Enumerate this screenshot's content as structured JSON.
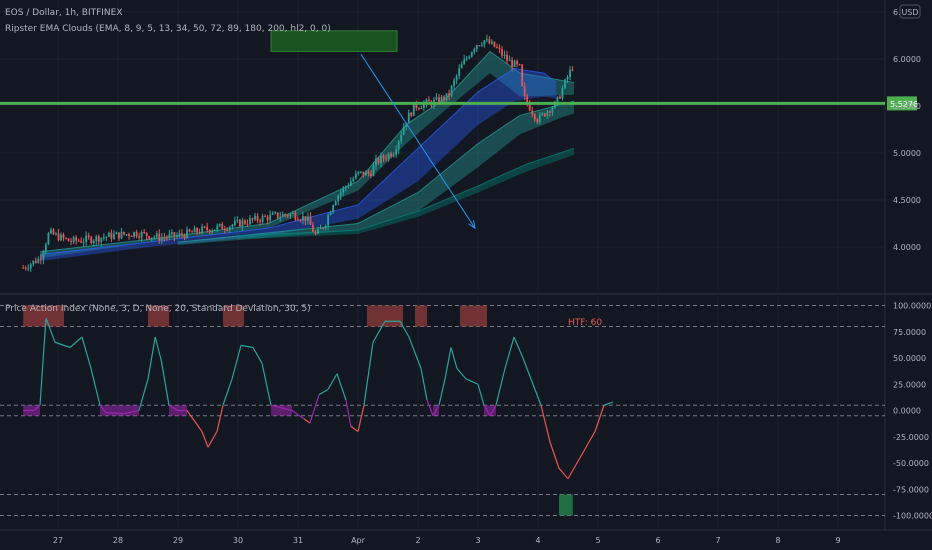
{
  "header": {
    "symbol_title": "EOS / Dollar, 1h, BITFINEX",
    "indicator_title": "Ripster EMA Clouds (EMA, 8, 9, 5, 13, 34, 50, 72, 89, 180, 200, hl2, 0, 0)",
    "oscillator_title": "Price Action Index (None, 3, D, None, 20, Standard Deviation, 30, 5)",
    "currency_badge": "USD"
  },
  "annotations": {
    "htf_label": "HTF: 60",
    "level_label": "5.5276"
  },
  "colors": {
    "background": "#131722",
    "up_candle": "#26a69a",
    "down_candle": "#ef5350",
    "level_line": "#4caf50",
    "osc_up": "#26a69a",
    "osc_down": "#ef5350",
    "osc_neutral": "#9c27b0",
    "zone": "#1b5e20",
    "arrow": "#2196f3",
    "htf_text": "#ef5350"
  },
  "chart_data": [
    {
      "type": "candlestick",
      "title": "EOS / Dollar, 1h, BITFINEX",
      "y_ticks": [
        "6.5",
        "6.0000",
        "5.5000",
        "5.0000",
        "4.5000",
        "4.0000"
      ],
      "x_ticks": [
        "27",
        "28",
        "29",
        "30",
        "31",
        "Apr",
        "2",
        "3",
        "4",
        "5",
        "6",
        "7",
        "8",
        "9"
      ],
      "ylim": [
        3.7,
        6.5
      ],
      "horizontal_level": 5.5276,
      "supply_zone": {
        "x_start_day": 3.55,
        "x_end_day": 5.65,
        "y_low": 6.08,
        "y_high": 6.3
      },
      "projection_arrow": {
        "from_day": 5.05,
        "from_price": 6.05,
        "to_day": 6.95,
        "to_price": 4.2
      },
      "close_path": [
        [
          -0.58,
          3.78
        ],
        [
          -0.3,
          3.88
        ],
        [
          -0.15,
          4.15
        ],
        [
          0.2,
          4.06
        ],
        [
          0.5,
          4.08
        ],
        [
          0.9,
          4.12
        ],
        [
          1.3,
          4.15
        ],
        [
          1.7,
          4.1
        ],
        [
          2.0,
          4.12
        ],
        [
          2.4,
          4.18
        ],
        [
          2.8,
          4.22
        ],
        [
          3.2,
          4.28
        ],
        [
          3.6,
          4.33
        ],
        [
          3.9,
          4.35
        ],
        [
          4.15,
          4.3
        ],
        [
          4.3,
          4.12
        ],
        [
          4.45,
          4.25
        ],
        [
          4.6,
          4.5
        ],
        [
          4.8,
          4.65
        ],
        [
          5.0,
          4.78
        ],
        [
          5.2,
          4.78
        ],
        [
          5.3,
          4.9
        ],
        [
          5.6,
          5.02
        ],
        [
          5.8,
          5.35
        ],
        [
          5.95,
          5.5
        ],
        [
          6.3,
          5.55
        ],
        [
          6.5,
          5.6
        ],
        [
          6.7,
          5.9
        ],
        [
          6.95,
          6.15
        ],
        [
          7.1,
          6.2
        ],
        [
          7.3,
          6.12
        ],
        [
          7.5,
          5.98
        ],
        [
          7.7,
          5.9
        ],
        [
          7.75,
          5.6
        ],
        [
          8.0,
          5.35
        ],
        [
          8.15,
          5.45
        ],
        [
          8.3,
          5.52
        ],
        [
          8.5,
          5.82
        ],
        [
          8.6,
          5.95
        ]
      ],
      "ema_clouds": [
        {
          "color": "#26a69a",
          "upper": [
            [
              -0.3,
              3.95
            ],
            [
              1.5,
              4.08
            ],
            [
              3.5,
              4.25
            ],
            [
              5.0,
              4.7
            ],
            [
              5.8,
              5.3
            ],
            [
              6.5,
              5.6
            ],
            [
              7.2,
              6.08
            ],
            [
              7.7,
              5.85
            ],
            [
              8.6,
              5.75
            ]
          ],
          "lower": [
            [
              -0.3,
              3.88
            ],
            [
              1.5,
              4.05
            ],
            [
              3.5,
              4.2
            ],
            [
              5.0,
              4.6
            ],
            [
              5.8,
              5.1
            ],
            [
              6.5,
              5.48
            ],
            [
              7.2,
              5.85
            ],
            [
              7.7,
              5.6
            ],
            [
              8.6,
              5.62
            ]
          ]
        },
        {
          "color": "#2962ff",
          "upper": [
            [
              -0.3,
              3.92
            ],
            [
              1.5,
              4.05
            ],
            [
              3.5,
              4.2
            ],
            [
              5.0,
              4.45
            ],
            [
              6.0,
              5.05
            ],
            [
              7.0,
              5.65
            ],
            [
              7.6,
              5.9
            ],
            [
              8.1,
              5.85
            ],
            [
              8.3,
              5.75
            ]
          ],
          "lower": [
            [
              -0.3,
              3.85
            ],
            [
              1.5,
              4.0
            ],
            [
              3.5,
              4.12
            ],
            [
              5.0,
              4.3
            ],
            [
              6.0,
              4.7
            ],
            [
              7.0,
              5.3
            ],
            [
              7.6,
              5.55
            ],
            [
              8.1,
              5.6
            ],
            [
              8.3,
              5.58
            ]
          ]
        },
        {
          "color": "#26a69a",
          "upper": [
            [
              2.0,
              4.05
            ],
            [
              3.5,
              4.15
            ],
            [
              5.0,
              4.25
            ],
            [
              6.0,
              4.58
            ],
            [
              7.0,
              5.1
            ],
            [
              7.7,
              5.4
            ],
            [
              8.4,
              5.52
            ],
            [
              8.6,
              5.55
            ]
          ],
          "lower": [
            [
              2.0,
              4.02
            ],
            [
              3.5,
              4.1
            ],
            [
              5.0,
              4.18
            ],
            [
              6.0,
              4.38
            ],
            [
              7.0,
              4.85
            ],
            [
              7.7,
              5.2
            ],
            [
              8.4,
              5.38
            ],
            [
              8.6,
              5.42
            ]
          ]
        },
        {
          "color": "#00897b",
          "upper": [
            [
              3.0,
              4.12
            ],
            [
              5.0,
              4.18
            ],
            [
              6.0,
              4.38
            ],
            [
              7.0,
              4.65
            ],
            [
              7.8,
              4.88
            ],
            [
              8.6,
              5.05
            ]
          ],
          "lower": [
            [
              3.0,
              4.08
            ],
            [
              5.0,
              4.14
            ],
            [
              6.0,
              4.32
            ],
            [
              7.0,
              4.58
            ],
            [
              7.8,
              4.8
            ],
            [
              8.6,
              4.98
            ]
          ]
        }
      ]
    },
    {
      "type": "line",
      "title": "Price Action Index (None, 3, D, None, 20, Standard Deviation, 30, 5)",
      "y_ticks": [
        "100.0000",
        "75.0000",
        "50.0000",
        "25.0000",
        "0.0000",
        "-25.0000",
        "-50.0000",
        "-75.0000",
        "-100.0000"
      ],
      "ylim": [
        -105,
        105
      ],
      "reference_levels": [
        100,
        80,
        5,
        -5,
        -80,
        -100
      ],
      "htf": "HTF: 60",
      "series": [
        {
          "values": [
            [
              -0.58,
              0
            ],
            [
              -0.4,
              0
            ],
            [
              -0.3,
              5
            ],
            [
              -0.2,
              88
            ],
            [
              -0.05,
              65
            ],
            [
              0.2,
              60
            ],
            [
              0.4,
              70
            ],
            [
              0.55,
              40
            ],
            [
              0.7,
              5
            ],
            [
              0.8,
              -2
            ],
            [
              1.1,
              -3
            ],
            [
              1.35,
              0
            ],
            [
              1.5,
              30
            ],
            [
              1.62,
              70
            ],
            [
              1.72,
              48
            ],
            [
              1.85,
              5
            ],
            [
              2.0,
              0
            ],
            [
              2.15,
              0
            ],
            [
              2.4,
              -20
            ],
            [
              2.5,
              -35
            ],
            [
              2.65,
              -20
            ],
            [
              2.75,
              5
            ],
            [
              2.9,
              30
            ],
            [
              3.05,
              62
            ],
            [
              3.25,
              60
            ],
            [
              3.4,
              45
            ],
            [
              3.55,
              5
            ],
            [
              3.9,
              0
            ],
            [
              4.1,
              -8
            ],
            [
              4.2,
              -12
            ],
            [
              4.35,
              15
            ],
            [
              4.5,
              20
            ],
            [
              4.65,
              35
            ],
            [
              4.8,
              10
            ],
            [
              4.88,
              -15
            ],
            [
              5.0,
              -20
            ],
            [
              5.1,
              5
            ],
            [
              5.25,
              65
            ],
            [
              5.45,
              85
            ],
            [
              5.7,
              85
            ],
            [
              5.85,
              70
            ],
            [
              6.05,
              40
            ],
            [
              6.15,
              10
            ],
            [
              6.25,
              -5
            ],
            [
              6.35,
              5
            ],
            [
              6.45,
              30
            ],
            [
              6.55,
              60
            ],
            [
              6.65,
              40
            ],
            [
              6.8,
              30
            ],
            [
              7.0,
              25
            ],
            [
              7.1,
              5
            ],
            [
              7.2,
              -5
            ],
            [
              7.3,
              5
            ],
            [
              7.45,
              40
            ],
            [
              7.6,
              70
            ],
            [
              7.75,
              50
            ],
            [
              7.95,
              20
            ],
            [
              8.05,
              5
            ],
            [
              8.2,
              -30
            ],
            [
              8.35,
              -55
            ],
            [
              8.5,
              -65
            ],
            [
              8.7,
              -45
            ],
            [
              8.95,
              -20
            ],
            [
              9.1,
              5
            ],
            [
              9.25,
              8
            ]
          ]
        }
      ],
      "signal_blocks_top": [
        [
          -0.58,
          0.1
        ],
        [
          1.5,
          1.85
        ],
        [
          2.75,
          3.1
        ],
        [
          5.15,
          5.75
        ],
        [
          5.95,
          6.15
        ],
        [
          6.7,
          7.15
        ]
      ],
      "signal_blocks_bottom": [
        [
          8.35,
          8.58
        ]
      ]
    }
  ]
}
